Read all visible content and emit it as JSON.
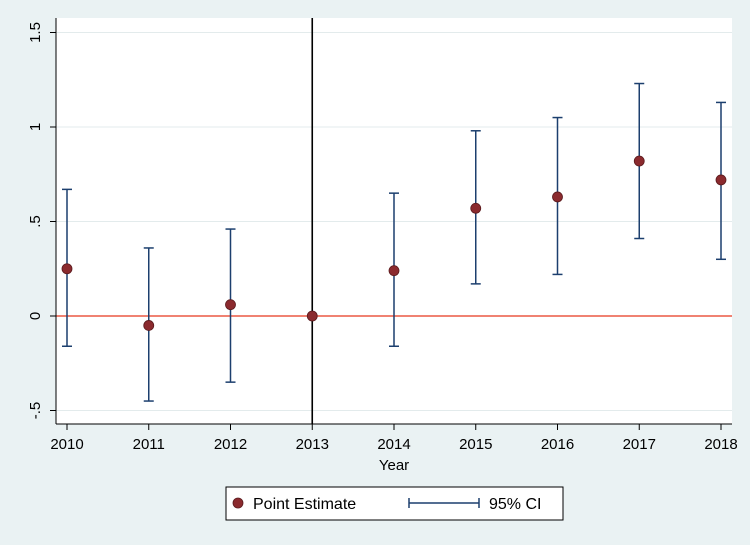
{
  "chart_data": {
    "type": "scatter",
    "title": "",
    "xlabel": "Year",
    "ylabel": "",
    "x": [
      2010,
      2011,
      2012,
      2013,
      2014,
      2015,
      2016,
      2017,
      2018
    ],
    "x_tick_labels": [
      "2010",
      "2011",
      "2012",
      "2013",
      "2014",
      "2015",
      "2016",
      "2017",
      "2018"
    ],
    "y_ticks": [
      -0.5,
      0,
      0.5,
      1,
      1.5
    ],
    "y_tick_labels": [
      "-.5",
      "0",
      ".5",
      "1",
      "1.5"
    ],
    "xlim": [
      2010,
      2018
    ],
    "ylim": [
      -0.5,
      1.5
    ],
    "series": [
      {
        "name": "Point Estimate",
        "kind": "point",
        "values": [
          0.25,
          -0.05,
          0.06,
          0.0,
          0.24,
          0.57,
          0.63,
          0.82,
          0.72
        ],
        "color": "#8b2a2e"
      },
      {
        "name": "95% CI",
        "kind": "errorbar",
        "lower": [
          -0.16,
          -0.45,
          -0.35,
          0.0,
          -0.16,
          0.17,
          0.22,
          0.41,
          0.3
        ],
        "upper": [
          0.67,
          0.36,
          0.46,
          0.0,
          0.65,
          0.98,
          1.05,
          1.23,
          1.13
        ],
        "color": "#1c3f6e"
      }
    ],
    "reference_lines": {
      "horizontal_y": 0,
      "horizontal_color": "#e8371e",
      "vertical_x": 2013,
      "vertical_color": "#000000"
    },
    "grid": true,
    "legend_position": "bottom-center"
  }
}
